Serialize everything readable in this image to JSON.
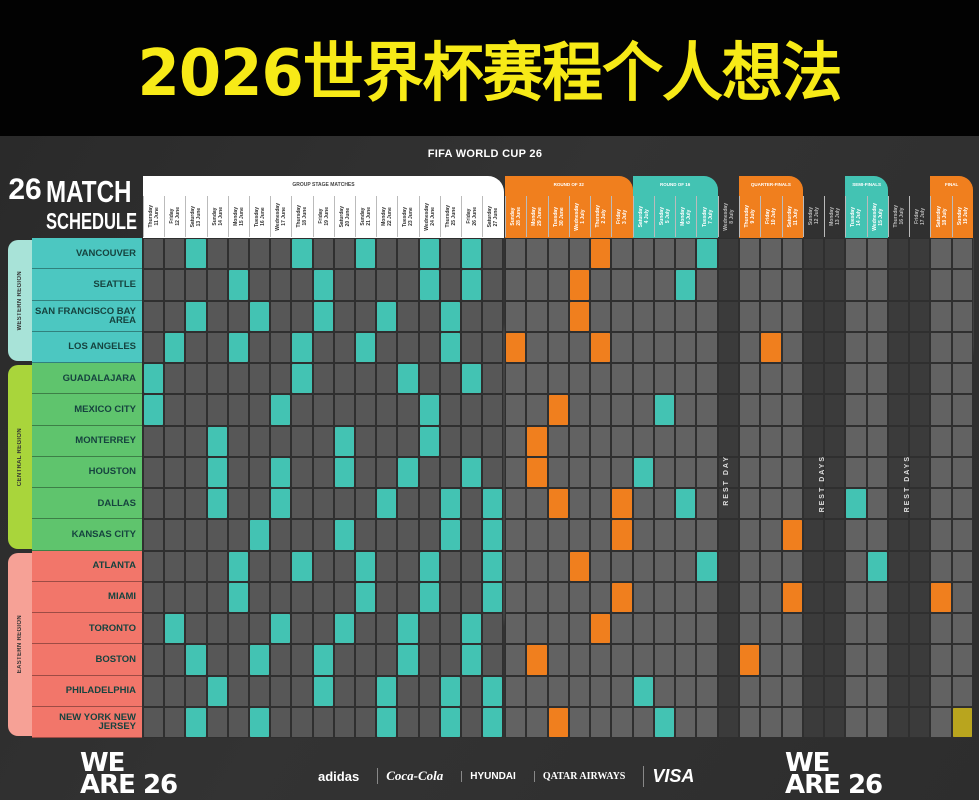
{
  "banner_title": "2026世界杯赛程个人想法",
  "poster": {
    "event": "FIFA WORLD CUP 26",
    "logo_number": "26",
    "logo_line1": "MATCH",
    "logo_line2": "SCHEDULE",
    "group_stage_label": "GROUP STAGE MATCHES",
    "stage_labels": {
      "r32": "ROUND OF 32",
      "r16": "ROUND OF 16",
      "qf": "QUARTER-FINALS",
      "sf": "SEMI-FINALS",
      "final": "FINAL"
    },
    "rest_labels": [
      "REST DAY",
      "REST DAYS",
      "REST DAYS"
    ],
    "footer_mark": "WE ARE 26",
    "sponsors": [
      "adidas",
      "Coca-Cola",
      "HYUNDAI",
      "QATAR AIRWAYS",
      "VISA"
    ]
  },
  "colors": {
    "group": "#43c3b3",
    "r32": "#f07f1e",
    "r16": "#43c3b3",
    "qf": "#f07f1e",
    "sf": "#43c3b3",
    "final": "#f07f1e",
    "final_match": "#b9a51e",
    "western": "#4cc7c1",
    "western_bar": "#a8e3d8",
    "central": "#5fc46d",
    "central_bar": "#a9d53b",
    "eastern": "#f2766a",
    "eastern_bar": "#f6a196",
    "title": "#f7ea17"
  },
  "columns": [
    {
      "stage": "group",
      "day": "Thursday",
      "date": "11 June"
    },
    {
      "stage": "group",
      "day": "Friday",
      "date": "12 June"
    },
    {
      "stage": "group",
      "day": "Saturday",
      "date": "13 June"
    },
    {
      "stage": "group",
      "day": "Sunday",
      "date": "14 June"
    },
    {
      "stage": "group",
      "day": "Monday",
      "date": "15 June"
    },
    {
      "stage": "group",
      "day": "Tuesday",
      "date": "16 June"
    },
    {
      "stage": "group",
      "day": "Wednesday",
      "date": "17 June"
    },
    {
      "stage": "group",
      "day": "Thursday",
      "date": "18 June"
    },
    {
      "stage": "group",
      "day": "Friday",
      "date": "19 June"
    },
    {
      "stage": "group",
      "day": "Saturday",
      "date": "20 June"
    },
    {
      "stage": "group",
      "day": "Sunday",
      "date": "21 June"
    },
    {
      "stage": "group",
      "day": "Monday",
      "date": "22 June"
    },
    {
      "stage": "group",
      "day": "Tuesday",
      "date": "23 June"
    },
    {
      "stage": "group",
      "day": "Wednesday",
      "date": "24 June"
    },
    {
      "stage": "group",
      "day": "Thursday",
      "date": "25 June"
    },
    {
      "stage": "group",
      "day": "Friday",
      "date": "26 June"
    },
    {
      "stage": "group",
      "day": "Saturday",
      "date": "27 June"
    },
    {
      "stage": "r32",
      "day": "Sunday",
      "date": "28 June"
    },
    {
      "stage": "r32",
      "day": "Monday",
      "date": "29 June"
    },
    {
      "stage": "r32",
      "day": "Tuesday",
      "date": "30 June"
    },
    {
      "stage": "r32",
      "day": "Wednesday",
      "date": "1 July"
    },
    {
      "stage": "r32",
      "day": "Thursday",
      "date": "2 July"
    },
    {
      "stage": "r32",
      "day": "Friday",
      "date": "3 July"
    },
    {
      "stage": "r16",
      "day": "Saturday",
      "date": "4 July"
    },
    {
      "stage": "r16",
      "day": "Sunday",
      "date": "5 July"
    },
    {
      "stage": "r16",
      "day": "Monday",
      "date": "6 July"
    },
    {
      "stage": "r16",
      "day": "Tuesday",
      "date": "7 July"
    },
    {
      "stage": "rest",
      "day": "Wednesday",
      "date": "8 July"
    },
    {
      "stage": "qf",
      "day": "Thursday",
      "date": "9 July"
    },
    {
      "stage": "qf",
      "day": "Friday",
      "date": "10 July"
    },
    {
      "stage": "qf",
      "day": "Saturday",
      "date": "11 July"
    },
    {
      "stage": "rest",
      "day": "Sunday",
      "date": "12 July"
    },
    {
      "stage": "rest",
      "day": "Monday",
      "date": "13 July"
    },
    {
      "stage": "sf",
      "day": "Tuesday",
      "date": "14 July"
    },
    {
      "stage": "sf",
      "day": "Wednesday",
      "date": "15 July"
    },
    {
      "stage": "rest",
      "day": "Thursday",
      "date": "16 July"
    },
    {
      "stage": "rest",
      "day": "Friday",
      "date": "17 July"
    },
    {
      "stage": "final",
      "day": "Saturday",
      "date": "18 July"
    },
    {
      "stage": "final",
      "day": "Sunday",
      "date": "19 July"
    }
  ],
  "regions": [
    {
      "name": "WESTERN REGION",
      "key": "western",
      "cities": [
        {
          "name": "VANCOUVER",
          "matches": [
            "13 June",
            "18 June",
            "21 June",
            "24 June",
            "26 June",
            "2 July",
            "7 July"
          ]
        },
        {
          "name": "SEATTLE",
          "matches": [
            "15 June",
            "19 June",
            "24 June",
            "26 June",
            "1 July",
            "6 July"
          ]
        },
        {
          "name": "SAN FRANCISCO BAY AREA",
          "matches": [
            "13 June",
            "16 June",
            "19 June",
            "22 June",
            "25 June",
            "1 July"
          ]
        },
        {
          "name": "LOS ANGELES",
          "matches": [
            "12 June",
            "15 June",
            "18 June",
            "21 June",
            "25 June",
            "28 June",
            "2 July",
            "10 July"
          ]
        }
      ]
    },
    {
      "name": "CENTRAL REGION",
      "key": "central",
      "cities": [
        {
          "name": "GUADALAJARA",
          "matches": [
            "11 June",
            "18 June",
            "23 June",
            "26 June"
          ]
        },
        {
          "name": "MEXICO CITY",
          "matches": [
            "11 June",
            "17 June",
            "24 June",
            "30 June",
            "5 July"
          ]
        },
        {
          "name": "MONTERREY",
          "matches": [
            "14 June",
            "20 June",
            "24 June",
            "29 June"
          ]
        },
        {
          "name": "HOUSTON",
          "matches": [
            "14 June",
            "17 June",
            "20 June",
            "23 June",
            "26 June",
            "29 June",
            "4 July"
          ]
        },
        {
          "name": "DALLAS",
          "matches": [
            "14 June",
            "17 June",
            "22 June",
            "25 June",
            "27 June",
            "30 June",
            "3 July",
            "6 July",
            "14 July"
          ]
        },
        {
          "name": "KANSAS CITY",
          "matches": [
            "16 June",
            "20 June",
            "25 June",
            "27 June",
            "3 July",
            "11 July"
          ]
        }
      ]
    },
    {
      "name": "EASTERN REGION",
      "key": "eastern",
      "cities": [
        {
          "name": "ATLANTA",
          "matches": [
            "15 June",
            "18 June",
            "21 June",
            "24 June",
            "27 June",
            "1 July",
            "7 July",
            "15 July"
          ]
        },
        {
          "name": "MIAMI",
          "matches": [
            "15 June",
            "21 June",
            "24 June",
            "27 June",
            "3 July",
            "11 July",
            "18 July"
          ]
        },
        {
          "name": "TORONTO",
          "matches": [
            "12 June",
            "17 June",
            "20 June",
            "23 June",
            "26 June",
            "2 July"
          ]
        },
        {
          "name": "BOSTON",
          "matches": [
            "13 June",
            "16 June",
            "19 June",
            "23 June",
            "26 June",
            "29 June",
            "9 July"
          ]
        },
        {
          "name": "PHILADELPHIA",
          "matches": [
            "14 June",
            "19 June",
            "22 June",
            "25 June",
            "27 June",
            "4 July"
          ]
        },
        {
          "name": "NEW YORK NEW JERSEY",
          "matches": [
            "13 June",
            "16 June",
            "22 June",
            "25 June",
            "27 June",
            "30 June",
            "5 July",
            "19 July"
          ]
        }
      ]
    }
  ]
}
